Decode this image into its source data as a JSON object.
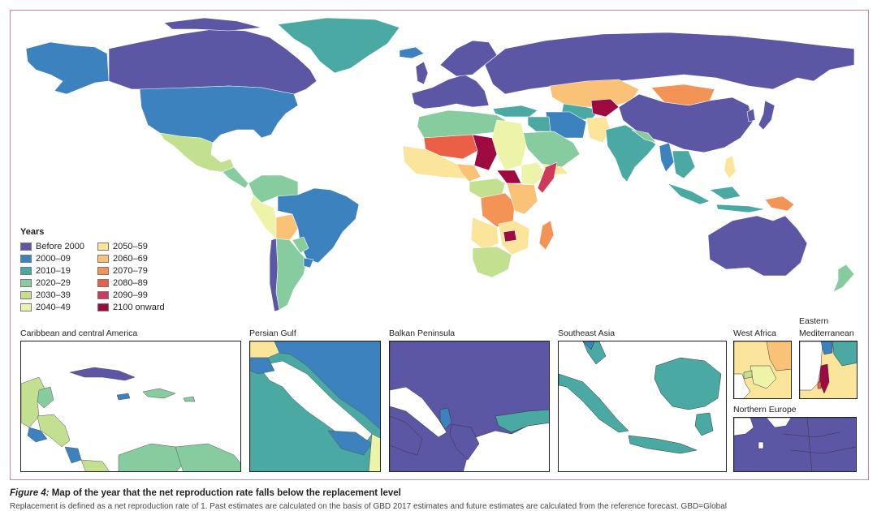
{
  "colors": {
    "before_2000": "#5b57a5",
    "y2000_09": "#3b82bf",
    "y2010_19": "#4aa9a2",
    "y2020_29": "#87cc9f",
    "y2030_39": "#c2e08f",
    "y2040_49": "#eef3aa",
    "y2050_59": "#fbe59a",
    "y2060_69": "#f9c276",
    "y2070_79": "#f39355",
    "y2080_89": "#ea5f46",
    "y2090_99": "#cd3a5a",
    "y2100_onward": "#9e0942"
  },
  "legend": {
    "title": "Years",
    "items": [
      {
        "label": "Before 2000",
        "color": "#5b57a5"
      },
      {
        "label": "2050–59",
        "color": "#fbe59a"
      },
      {
        "label": "2000–09",
        "color": "#3b82bf"
      },
      {
        "label": "2060–69",
        "color": "#f9c276"
      },
      {
        "label": "2010–19",
        "color": "#4aa9a2"
      },
      {
        "label": "2070–79",
        "color": "#f39355"
      },
      {
        "label": "2020–29",
        "color": "#87cc9f"
      },
      {
        "label": "2080–89",
        "color": "#ea5f46"
      },
      {
        "label": "2030–39",
        "color": "#c2e08f"
      },
      {
        "label": "2090–99",
        "color": "#cd3a5a"
      },
      {
        "label": "2040–49",
        "color": "#eef3aa"
      },
      {
        "label": "2100 onward",
        "color": "#9e0942"
      }
    ]
  },
  "insets": {
    "caribbean": "Caribbean and central America",
    "persian_gulf": "Persian Gulf",
    "balkan": "Balkan Peninsula",
    "southeast_asia": "Southeast Asia",
    "west_africa": "West Africa",
    "eastern_med_line1": "Eastern",
    "eastern_med_line2": "Mediterranean",
    "northern_europe": "Northern Europe"
  },
  "caption": {
    "figure_label": "Figure 4:",
    "title": "Map of the year that the net reproduction rate falls below the replacement level",
    "subtitle": "Replacement is defined as a net reproduction rate of 1. Past estimates are calculated on the basis of GBD 2017 estimates and future estimates are calculated from the reference forecast. GBD=Global"
  }
}
